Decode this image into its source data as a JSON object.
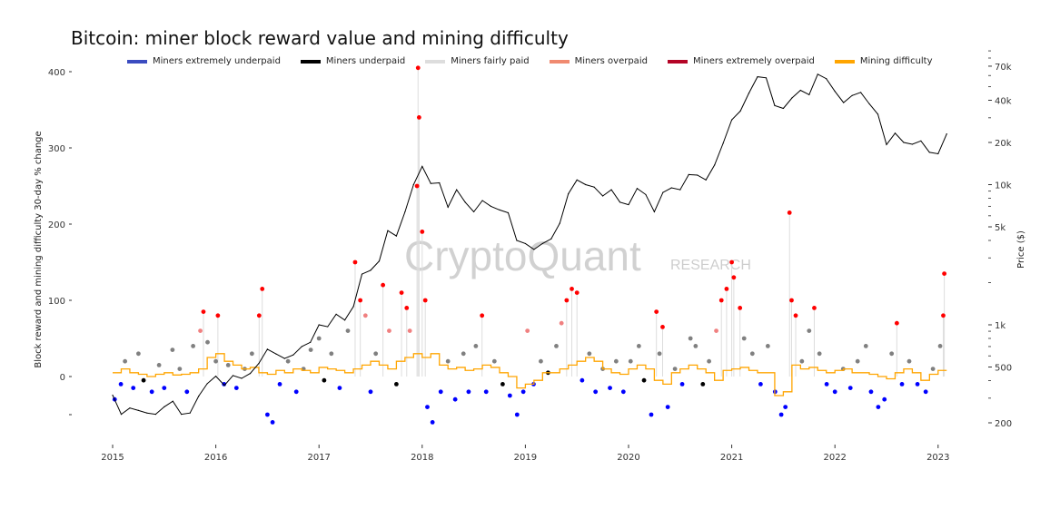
{
  "chart_data": {
    "type": "scatter",
    "title": "Bitcoin: miner block reward value and mining difficulty",
    "ylabel": "Block reward and mining difficulty 30-day % change",
    "y2label": "Price ($)",
    "xlabel": "",
    "xlim": [
      2015,
      2023.1
    ],
    "ylim": [
      -80,
      410
    ],
    "y2lim": [
      170,
      90000
    ],
    "y2scale": "log",
    "x_ticks": [
      "2015",
      "2016",
      "2017",
      "2018",
      "2019",
      "2020",
      "2021",
      "2022",
      "2023"
    ],
    "y_ticks": [
      "400",
      "300",
      "200",
      "100",
      "0"
    ],
    "y_tick_values": [
      400,
      300,
      200,
      100,
      0
    ],
    "y2_ticks": [
      "70k",
      "40k",
      "20k",
      "10k",
      "5k",
      "1k",
      "500",
      "200"
    ],
    "y2_tick_values": [
      70000,
      40000,
      20000,
      10000,
      5000,
      1000,
      500,
      200
    ],
    "legend_position": "top",
    "legend": [
      {
        "key": "eu",
        "label": "Miners extremely underpaid",
        "color": "#3b4cc0",
        "dot": "#0000ff"
      },
      {
        "key": "u",
        "label": "Miners underpaid",
        "color": "#000000",
        "dot": "#000000"
      },
      {
        "key": "f",
        "label": "Miners fairly paid",
        "color": "#dddddd",
        "dot": "#808080"
      },
      {
        "key": "o",
        "label": "Miners overpaid",
        "color": "#f08a70",
        "dot": "#f08080"
      },
      {
        "key": "eo",
        "label": "Miners extremely overpaid",
        "color": "#b40426",
        "dot": "#ff0000"
      },
      {
        "key": "diff",
        "label": "Mining difficulty",
        "color": "#ffa500"
      }
    ],
    "watermark": {
      "brand": "CryptoQuant",
      "sub": "RESEARCH"
    },
    "price_monthly_start": 2015,
    "price": [
      315,
      230,
      255,
      245,
      235,
      230,
      260,
      285,
      230,
      235,
      310,
      380,
      430,
      370,
      435,
      415,
      450,
      530,
      670,
      620,
      575,
      610,
      700,
      750,
      1000,
      970,
      1190,
      1080,
      1350,
      2300,
      2450,
      2850,
      4700,
      4300,
      6400,
      10000,
      13500,
      10200,
      10300,
      6900,
      9200,
      7500,
      6400,
      7700,
      7000,
      6600,
      6300,
      4000,
      3800,
      3450,
      3800,
      4100,
      5300,
      8600,
      10800,
      10000,
      9600,
      8300,
      9200,
      7500,
      7200,
      9400,
      8500,
      6400,
      8800,
      9500,
      9200,
      11800,
      11700,
      10800,
      13800,
      19700,
      29000,
      33500,
      45000,
      58800,
      57800,
      36700,
      35000,
      41500,
      47100,
      43800,
      61300,
      57000,
      46300,
      38500,
      43200,
      45500,
      37700,
      31800,
      19300,
      23300,
      20000,
      19400,
      20500,
      17000,
      16600,
      23000
    ],
    "difficulty_change": [
      5,
      10,
      5,
      3,
      0,
      3,
      5,
      2,
      3,
      5,
      10,
      25,
      30,
      20,
      15,
      10,
      12,
      5,
      3,
      8,
      5,
      10,
      8,
      5,
      12,
      10,
      8,
      5,
      10,
      15,
      20,
      15,
      10,
      20,
      25,
      30,
      25,
      30,
      15,
      10,
      12,
      8,
      10,
      15,
      12,
      5,
      0,
      -15,
      -10,
      -5,
      5,
      5,
      10,
      15,
      20,
      25,
      20,
      10,
      5,
      3,
      10,
      15,
      10,
      -5,
      -10,
      5,
      10,
      15,
      10,
      5,
      -5,
      8,
      10,
      12,
      8,
      5,
      5,
      -25,
      -20,
      15,
      10,
      12,
      8,
      5,
      8,
      10,
      5,
      5,
      3,
      0,
      -3,
      5,
      10,
      5,
      -5,
      3,
      8
    ],
    "reward_change": [
      [
        2015.02,
        -30,
        "eu"
      ],
      [
        2015.08,
        -10,
        "eu"
      ],
      [
        2015.12,
        20,
        "f"
      ],
      [
        2015.2,
        -15,
        "eu"
      ],
      [
        2015.25,
        30,
        "f"
      ],
      [
        2015.3,
        -5,
        "u"
      ],
      [
        2015.38,
        -20,
        "eu"
      ],
      [
        2015.45,
        15,
        "f"
      ],
      [
        2015.5,
        -15,
        "eu"
      ],
      [
        2015.58,
        35,
        "f"
      ],
      [
        2015.65,
        10,
        "f"
      ],
      [
        2015.72,
        -20,
        "eu"
      ],
      [
        2015.78,
        40,
        "f"
      ],
      [
        2015.85,
        60,
        "o"
      ],
      [
        2015.88,
        85,
        "eo"
      ],
      [
        2015.92,
        45,
        "f"
      ],
      [
        2016.0,
        20,
        "f"
      ],
      [
        2016.02,
        80,
        "eo"
      ],
      [
        2016.08,
        -10,
        "eu"
      ],
      [
        2016.12,
        15,
        "f"
      ],
      [
        2016.2,
        -15,
        "eu"
      ],
      [
        2016.28,
        10,
        "f"
      ],
      [
        2016.35,
        30,
        "f"
      ],
      [
        2016.42,
        80,
        "eo"
      ],
      [
        2016.45,
        115,
        "eo"
      ],
      [
        2016.5,
        -50,
        "eu"
      ],
      [
        2016.55,
        -60,
        "eu"
      ],
      [
        2016.62,
        -10,
        "eu"
      ],
      [
        2016.7,
        20,
        "f"
      ],
      [
        2016.78,
        -20,
        "eu"
      ],
      [
        2016.85,
        10,
        "f"
      ],
      [
        2016.92,
        35,
        "f"
      ],
      [
        2017.0,
        50,
        "f"
      ],
      [
        2017.05,
        -5,
        "u"
      ],
      [
        2017.12,
        30,
        "f"
      ],
      [
        2017.2,
        -15,
        "eu"
      ],
      [
        2017.28,
        60,
        "f"
      ],
      [
        2017.35,
        150,
        "eo"
      ],
      [
        2017.4,
        100,
        "eo"
      ],
      [
        2017.45,
        80,
        "o"
      ],
      [
        2017.5,
        -20,
        "eu"
      ],
      [
        2017.55,
        30,
        "f"
      ],
      [
        2017.62,
        120,
        "eo"
      ],
      [
        2017.68,
        60,
        "o"
      ],
      [
        2017.75,
        -10,
        "u"
      ],
      [
        2017.8,
        110,
        "eo"
      ],
      [
        2017.85,
        90,
        "eo"
      ],
      [
        2017.88,
        60,
        "o"
      ],
      [
        2017.95,
        250,
        "eo"
      ],
      [
        2017.96,
        405,
        "eo"
      ],
      [
        2017.97,
        340,
        "eo"
      ],
      [
        2018.0,
        190,
        "eo"
      ],
      [
        2018.03,
        100,
        "eo"
      ],
      [
        2018.05,
        -40,
        "eu"
      ],
      [
        2018.1,
        -60,
        "eu"
      ],
      [
        2018.18,
        -20,
        "eu"
      ],
      [
        2018.25,
        20,
        "f"
      ],
      [
        2018.32,
        -30,
        "eu"
      ],
      [
        2018.4,
        30,
        "f"
      ],
      [
        2018.45,
        -20,
        "eu"
      ],
      [
        2018.52,
        40,
        "f"
      ],
      [
        2018.58,
        80,
        "eo"
      ],
      [
        2018.62,
        -20,
        "eu"
      ],
      [
        2018.7,
        20,
        "f"
      ],
      [
        2018.78,
        -10,
        "u"
      ],
      [
        2018.85,
        -25,
        "eu"
      ],
      [
        2018.92,
        -50,
        "eu"
      ],
      [
        2018.98,
        -20,
        "eu"
      ],
      [
        2019.02,
        60,
        "o"
      ],
      [
        2019.08,
        -10,
        "eu"
      ],
      [
        2019.15,
        20,
        "f"
      ],
      [
        2019.22,
        5,
        "u"
      ],
      [
        2019.3,
        40,
        "f"
      ],
      [
        2019.35,
        70,
        "o"
      ],
      [
        2019.4,
        100,
        "eo"
      ],
      [
        2019.45,
        115,
        "eo"
      ],
      [
        2019.5,
        110,
        "eo"
      ],
      [
        2019.55,
        -5,
        "eu"
      ],
      [
        2019.62,
        30,
        "f"
      ],
      [
        2019.68,
        -20,
        "eu"
      ],
      [
        2019.75,
        10,
        "f"
      ],
      [
        2019.82,
        -15,
        "eu"
      ],
      [
        2019.88,
        20,
        "f"
      ],
      [
        2019.95,
        -20,
        "eu"
      ],
      [
        2020.02,
        20,
        "f"
      ],
      [
        2020.1,
        40,
        "f"
      ],
      [
        2020.15,
        -5,
        "u"
      ],
      [
        2020.22,
        -50,
        "eu"
      ],
      [
        2020.27,
        85,
        "eo"
      ],
      [
        2020.3,
        30,
        "f"
      ],
      [
        2020.33,
        65,
        "eo"
      ],
      [
        2020.38,
        -40,
        "eu"
      ],
      [
        2020.45,
        10,
        "f"
      ],
      [
        2020.52,
        -10,
        "eu"
      ],
      [
        2020.6,
        50,
        "f"
      ],
      [
        2020.65,
        40,
        "f"
      ],
      [
        2020.72,
        -10,
        "u"
      ],
      [
        2020.78,
        20,
        "f"
      ],
      [
        2020.85,
        60,
        "o"
      ],
      [
        2020.9,
        100,
        "eo"
      ],
      [
        2020.95,
        115,
        "eo"
      ],
      [
        2021.0,
        150,
        "eo"
      ],
      [
        2021.02,
        130,
        "eo"
      ],
      [
        2021.08,
        90,
        "eo"
      ],
      [
        2021.12,
        50,
        "f"
      ],
      [
        2021.2,
        30,
        "f"
      ],
      [
        2021.28,
        -10,
        "eu"
      ],
      [
        2021.35,
        40,
        "f"
      ],
      [
        2021.42,
        -20,
        "eu"
      ],
      [
        2021.48,
        -50,
        "eu"
      ],
      [
        2021.52,
        -40,
        "eu"
      ],
      [
        2021.56,
        215,
        "eo"
      ],
      [
        2021.58,
        100,
        "eo"
      ],
      [
        2021.62,
        80,
        "eo"
      ],
      [
        2021.68,
        20,
        "f"
      ],
      [
        2021.75,
        60,
        "f"
      ],
      [
        2021.8,
        90,
        "eo"
      ],
      [
        2021.85,
        30,
        "f"
      ],
      [
        2021.92,
        -10,
        "eu"
      ],
      [
        2022.0,
        -20,
        "eu"
      ],
      [
        2022.08,
        10,
        "f"
      ],
      [
        2022.15,
        -15,
        "eu"
      ],
      [
        2022.22,
        20,
        "f"
      ],
      [
        2022.3,
        40,
        "f"
      ],
      [
        2022.35,
        -20,
        "eu"
      ],
      [
        2022.42,
        -40,
        "eu"
      ],
      [
        2022.48,
        -30,
        "eu"
      ],
      [
        2022.55,
        30,
        "f"
      ],
      [
        2022.6,
        70,
        "eo"
      ],
      [
        2022.65,
        -10,
        "eu"
      ],
      [
        2022.72,
        20,
        "f"
      ],
      [
        2022.8,
        -10,
        "eu"
      ],
      [
        2022.88,
        -20,
        "eu"
      ],
      [
        2022.95,
        10,
        "f"
      ],
      [
        2023.02,
        40,
        "f"
      ],
      [
        2023.05,
        80,
        "eo"
      ],
      [
        2023.06,
        135,
        "eo"
      ]
    ]
  }
}
